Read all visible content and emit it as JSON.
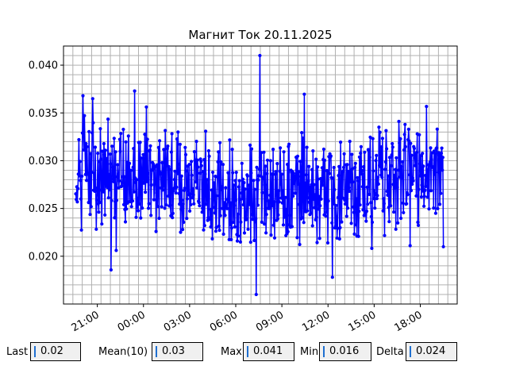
{
  "chart_data": {
    "type": "line",
    "title": "Магнит Ток 20.11.2025",
    "xlabel": "",
    "ylabel": "",
    "x_start_hour": 19.6,
    "x_end_hour": 43.5,
    "xlim_hours": [
      18.8,
      44.4
    ],
    "ylim": [
      0.015,
      0.042
    ],
    "x_ticks": [
      "21:00",
      "00:00",
      "03:00",
      "06:00",
      "09:00",
      "12:00",
      "15:00",
      "18:00"
    ],
    "x_tick_hours": [
      21,
      24,
      27,
      30,
      33,
      36,
      39,
      42
    ],
    "y_ticks": [
      "0.020",
      "0.025",
      "0.030",
      "0.035",
      "0.040"
    ],
    "y_tick_values": [
      0.02,
      0.025,
      0.03,
      0.035,
      0.04
    ],
    "grid": true,
    "legend": "none",
    "series_color": "#0000ff",
    "n_points": 720,
    "min_value": 0.016,
    "max_value": 0.041
  },
  "stats": {
    "last_label": "Last",
    "last_value": "0.02",
    "mean_label": "Mean(10)",
    "mean_value": "0.03",
    "max_label": "Max",
    "max_value": "0.041",
    "min_label": "Min",
    "min_value": "0.016",
    "delta_label": "Delta",
    "delta_value": "0.024"
  }
}
